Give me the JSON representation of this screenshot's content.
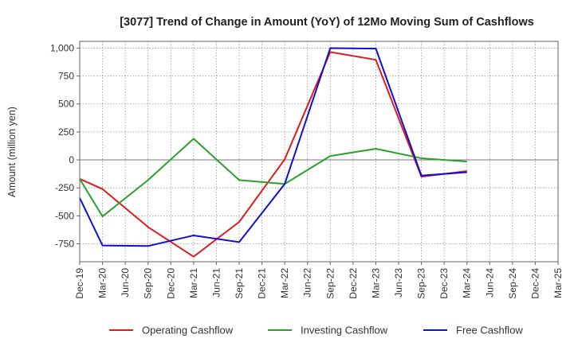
{
  "chart_data": {
    "type": "line",
    "title": "[3077]  Trend of Change in Amount (YoY) of 12Mo Moving Sum of Cashflows",
    "ylabel": "Amount (million yen)",
    "xlabel": "",
    "ylim": [
      -910,
      1060
    ],
    "yticks": [
      1000,
      750,
      500,
      250,
      0,
      -250,
      -500,
      -750
    ],
    "ytick_labels": [
      "1,000",
      "750",
      "500",
      "250",
      "0",
      "-250",
      "-500",
      "-750"
    ],
    "categories": [
      "Dec-19",
      "Mar-20",
      "Jun-20",
      "Sep-20",
      "Dec-20",
      "Mar-21",
      "Jun-21",
      "Sep-21",
      "Dec-21",
      "Mar-22",
      "Jun-22",
      "Sep-22",
      "Dec-22",
      "Mar-23",
      "Jun-23",
      "Sep-23",
      "Dec-23",
      "Mar-24",
      "Jun-24",
      "Sep-24",
      "Dec-24",
      "Mar-25"
    ],
    "series": [
      {
        "name": "Operating Cashflow",
        "color": "#e31a1c",
        "values": [
          -170,
          -260,
          null,
          -600,
          null,
          -865,
          null,
          -555,
          null,
          5,
          null,
          965,
          null,
          895,
          null,
          -150,
          null,
          -100,
          null,
          null,
          null,
          null
        ]
      },
      {
        "name": "Investing Cashflow",
        "color": "#2ca02c",
        "values": [
          -170,
          -505,
          null,
          -180,
          null,
          190,
          null,
          -180,
          null,
          -215,
          null,
          35,
          null,
          100,
          null,
          15,
          null,
          -15,
          null,
          null,
          null,
          null
        ]
      },
      {
        "name": "Free Cashflow",
        "color": "#1010d0",
        "values": [
          -340,
          -765,
          null,
          -770,
          null,
          -675,
          null,
          -735,
          null,
          -215,
          null,
          1000,
          null,
          995,
          null,
          -140,
          null,
          -110,
          null,
          null,
          null,
          null
        ]
      }
    ],
    "grid": true,
    "legend": "bottom"
  }
}
